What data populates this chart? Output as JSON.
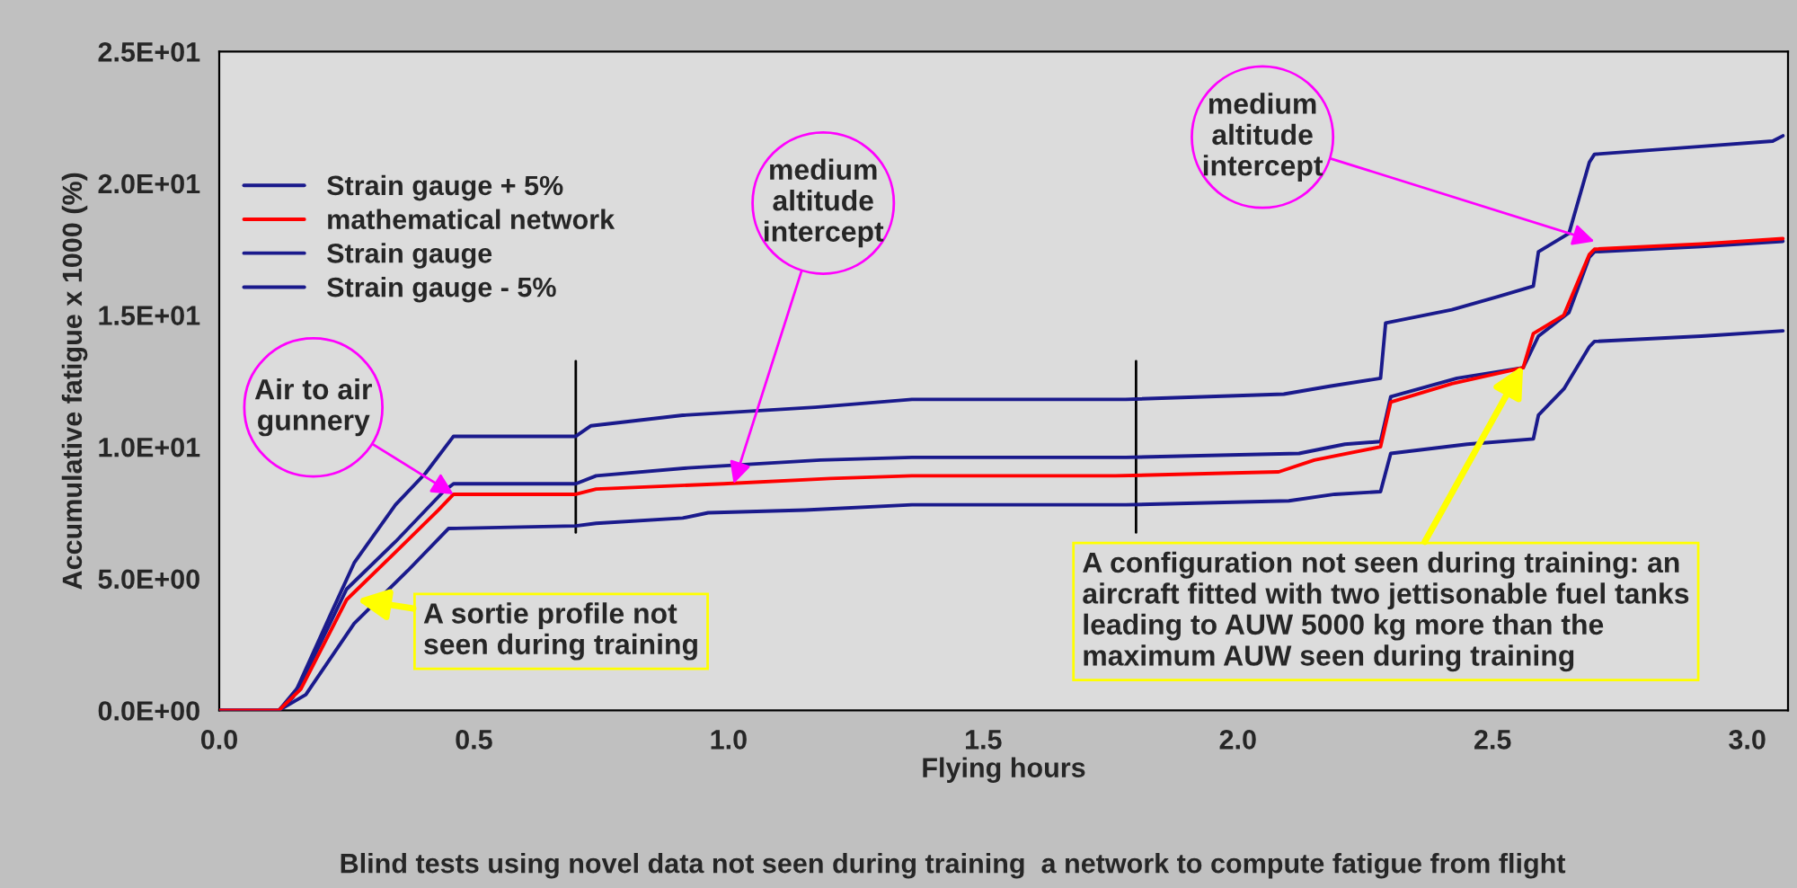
{
  "chart_data": {
    "type": "line",
    "xlabel": "Flying hours",
    "ylabel": "Accumulative fatigue x 1000 (%)",
    "xlim": [
      0,
      3.08
    ],
    "xticks": [
      {
        "value": 0,
        "label": "0.0"
      },
      0.5,
      {
        "value": 1,
        "label": "1.0"
      },
      1.5,
      {
        "value": 2,
        "label": "2.0"
      },
      2.5,
      {
        "value": 3,
        "label": "3.0"
      }
    ],
    "ylim": [
      0,
      25
    ],
    "yticks": [
      {
        "value": 0,
        "label": "0.0E+00"
      },
      {
        "value": 5,
        "label": "5.0E+00"
      },
      {
        "value": 10,
        "label": "1.0E+01"
      },
      {
        "value": 15,
        "label": "1.5E+01"
      },
      {
        "value": 20,
        "label": "2.0E+01"
      },
      {
        "value": 25,
        "label": "2.5E+01"
      }
    ],
    "grid": false,
    "legend": "top left",
    "marker": "none",
    "line_style": "solid",
    "series": [
      {
        "name": "Strain gauge + 5%",
        "color": "#1a1a8c",
        "x": [
          0,
          0.117,
          0.145,
          0.22,
          0.265,
          0.346,
          0.405,
          0.46,
          0.7,
          0.73,
          0.91,
          1.17,
          1.36,
          1.78,
          2.09,
          2.18,
          2.28,
          2.29,
          2.42,
          2.51,
          2.58,
          2.59,
          2.65,
          2.69,
          2.7,
          2.91,
          3.05,
          3.07
        ],
        "values": [
          0,
          0,
          0.5,
          3.7,
          5.6,
          7.8,
          9.0,
          10.4,
          10.4,
          10.8,
          11.2,
          11.5,
          11.8,
          11.8,
          12.0,
          12.3,
          12.6,
          14.7,
          15.2,
          15.7,
          16.1,
          17.4,
          18.1,
          20.8,
          21.1,
          21.4,
          21.6,
          21.8
        ]
      },
      {
        "name": "mathematical network",
        "color": "#ff0000",
        "x": [
          0,
          0.117,
          0.16,
          0.25,
          0.346,
          0.43,
          0.46,
          0.7,
          0.74,
          0.99,
          1.2,
          1.36,
          1.76,
          2.08,
          2.15,
          2.28,
          2.3,
          2.42,
          2.56,
          2.58,
          2.64,
          2.69,
          2.7,
          2.91,
          3.07
        ],
        "values": [
          0,
          0,
          0.8,
          4.2,
          6.0,
          7.6,
          8.2,
          8.2,
          8.4,
          8.6,
          8.8,
          8.9,
          8.9,
          9.05,
          9.5,
          10.0,
          11.7,
          12.4,
          13.0,
          14.3,
          15.0,
          17.3,
          17.5,
          17.7,
          17.9
        ]
      },
      {
        "name": "Strain gauge",
        "color": "#1a1a8c",
        "x": [
          0,
          0.117,
          0.16,
          0.25,
          0.346,
          0.44,
          0.46,
          0.7,
          0.74,
          0.92,
          1.18,
          1.36,
          1.78,
          2.12,
          2.21,
          2.28,
          2.3,
          2.43,
          2.56,
          2.59,
          2.65,
          2.69,
          2.7,
          2.91,
          3.07
        ],
        "values": [
          0,
          0,
          1.0,
          4.6,
          6.4,
          8.3,
          8.6,
          8.6,
          8.9,
          9.2,
          9.5,
          9.6,
          9.6,
          9.75,
          10.1,
          10.2,
          11.9,
          12.6,
          13.0,
          14.2,
          15.1,
          17.2,
          17.4,
          17.6,
          17.8
        ]
      },
      {
        "name": "Strain gauge - 5%",
        "color": "#1a1a8c",
        "x": [
          0,
          0.117,
          0.17,
          0.265,
          0.37,
          0.45,
          0.7,
          0.74,
          0.91,
          0.96,
          1.15,
          1.36,
          1.78,
          2.1,
          2.19,
          2.28,
          2.3,
          2.45,
          2.58,
          2.59,
          2.64,
          2.69,
          2.7,
          2.91,
          3.07
        ],
        "values": [
          0,
          0,
          0.6,
          3.3,
          5.3,
          6.9,
          7.0,
          7.1,
          7.3,
          7.5,
          7.6,
          7.8,
          7.8,
          7.95,
          8.2,
          8.3,
          9.75,
          10.1,
          10.3,
          11.2,
          12.2,
          13.8,
          14.0,
          14.2,
          14.4
        ]
      }
    ],
    "ref_lines": [
      {
        "axis": "x",
        "value": 0.7,
        "color": "#000000"
      },
      {
        "axis": "x",
        "value": 1.8,
        "color": "#000000"
      }
    ],
    "annotations": [
      {
        "text": "Air to air\ngunnery",
        "x": 0.46,
        "y": 8.2
      },
      {
        "text": "medium\naltitude\nintercept",
        "x": 1.01,
        "y": 8.6
      },
      {
        "text": "medium\naltitude\nintercept",
        "x": 2.7,
        "y": 17.8
      },
      {
        "text": "A sortie profile not\nseen during training",
        "x": 0.27,
        "y": 4.2
      },
      {
        "text": "A configuration not seen during training: an\naircraft fitted with two jettisonable fuel tanks\nleading to AUW 5000 kg more than the\nmaximum AUW seen during training",
        "x": 2.56,
        "y": 13.1
      },
      "Blind tests using novel data not seen during training  a network to compute fatigue from flight"
    ]
  }
}
